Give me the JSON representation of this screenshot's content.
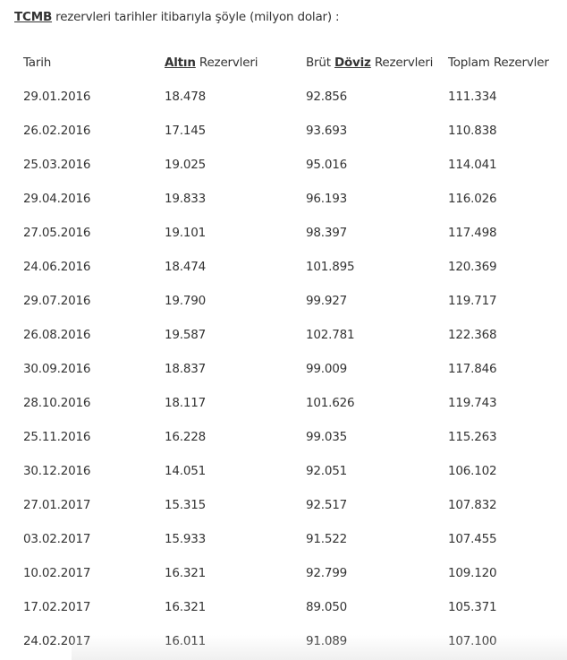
{
  "intro": {
    "link": "TCMB",
    "text": " rezervleri tarihler itibarıyla şöyle (milyon dolar) :"
  },
  "table": {
    "headers": {
      "date": "Tarih",
      "gold_link": "Altın",
      "gold_rest": " Rezervleri",
      "fx_prefix": "Brüt ",
      "fx_link": "Döviz",
      "fx_rest": " Rezervleri",
      "total": "Toplam Rezervler"
    },
    "rows": [
      [
        "29.01.2016",
        "18.478",
        "92.856",
        "111.334"
      ],
      [
        "26.02.2016",
        "17.145",
        "93.693",
        "110.838"
      ],
      [
        "25.03.2016",
        "19.025",
        "95.016",
        "114.041"
      ],
      [
        "29.04.2016",
        "19.833",
        "96.193",
        "116.026"
      ],
      [
        "27.05.2016",
        "19.101",
        "98.397",
        "117.498"
      ],
      [
        "24.06.2016",
        "18.474",
        "101.895",
        "120.369"
      ],
      [
        "29.07.2016",
        "19.790",
        "99.927",
        "119.717"
      ],
      [
        "26.08.2016",
        "19.587",
        "102.781",
        "122.368"
      ],
      [
        "30.09.2016",
        "18.837",
        "99.009",
        "117.846"
      ],
      [
        "28.10.2016",
        "18.117",
        "101.626",
        "119.743"
      ],
      [
        "25.11.2016",
        "16.228",
        "99.035",
        "115.263"
      ],
      [
        "30.12.2016",
        "14.051",
        "92.051",
        "106.102"
      ],
      [
        "27.01.2017",
        "15.315",
        "92.517",
        "107.832"
      ],
      [
        "03.02.2017",
        "15.933",
        "91.522",
        "107.455"
      ],
      [
        "10.02.2017",
        "16.321",
        "92.799",
        "109.120"
      ],
      [
        "17.02.2017",
        "16.321",
        "89.050",
        "105.371"
      ],
      [
        "24.02.2017",
        "16.011",
        "91.089",
        "107.100"
      ]
    ]
  }
}
